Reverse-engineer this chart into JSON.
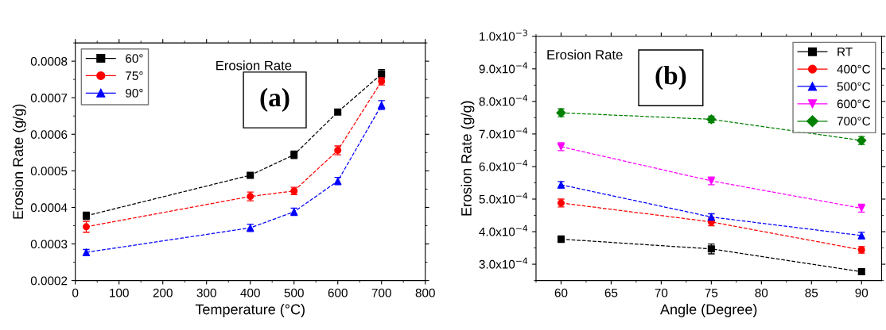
{
  "chart_data": [
    {
      "type": "line",
      "xlabel": "Temperature (°C)",
      "ylabel": "Erosion Rate (g/g)",
      "annotations": [
        "Erosion Rate",
        "(a)"
      ],
      "x": [
        25,
        400,
        500,
        600,
        700
      ],
      "xlim": [
        0,
        800
      ],
      "xticks": [
        0,
        100,
        200,
        300,
        400,
        500,
        600,
        700,
        800
      ],
      "ylim": [
        0.0002,
        0.00085
      ],
      "yticks": [
        {
          "value": 0.0002,
          "label": "0.0002"
        },
        {
          "value": 0.0003,
          "label": "0.0003"
        },
        {
          "value": 0.0004,
          "label": "0.0004"
        },
        {
          "value": 0.0005,
          "label": "0.0005"
        },
        {
          "value": 0.0006,
          "label": "0.0006"
        },
        {
          "value": 0.0007,
          "label": "0.0007"
        },
        {
          "value": 0.0008,
          "label": "0.0008"
        }
      ],
      "grid": false,
      "legend": "top left",
      "line_style": "dashed",
      "series": [
        {
          "name": "60°",
          "color": "#000000",
          "marker": "square",
          "values": [
            0.000377,
            0.000488,
            0.000544,
            0.000661,
            0.000765
          ],
          "errors": [
            1e-05,
            6e-06,
            1e-05,
            6e-06,
            1.2e-05
          ]
        },
        {
          "name": "75°",
          "color": "#ff0000",
          "marker": "circle",
          "values": [
            0.000347,
            0.00043,
            0.000445,
            0.000556,
            0.000745
          ],
          "errors": [
            1.5e-05,
            1.2e-05,
            1e-05,
            1.2e-05,
            1e-05
          ]
        },
        {
          "name": "90°",
          "color": "#0000ff",
          "marker": "triangle",
          "values": [
            0.000277,
            0.000344,
            0.000388,
            0.000472,
            0.00068
          ],
          "errors": [
            8e-06,
            1e-05,
            1e-05,
            1e-05,
            1.2e-05
          ]
        }
      ]
    },
    {
      "type": "line",
      "xlabel": "Angle (Degree)",
      "ylabel": "Erosion Rate (g/g)",
      "annotations": [
        "Erosion Rate",
        "(b)"
      ],
      "x": [
        60,
        75,
        90
      ],
      "xlim": [
        57.5,
        92
      ],
      "xticks": [
        60,
        65,
        70,
        75,
        80,
        85,
        90
      ],
      "ylim": [
        0.00025,
        0.001
      ],
      "yticks": [
        {
          "value": 0.0003,
          "label": "3.0x10$^{−4}$"
        },
        {
          "value": 0.0004,
          "label": "4.0x10$^{−4}$"
        },
        {
          "value": 0.0005,
          "label": "5.0x10$^{−4}$"
        },
        {
          "value": 0.0006,
          "label": "6.0x10$^{−4}$"
        },
        {
          "value": 0.0007,
          "label": "7.0x10$^{−4}$"
        },
        {
          "value": 0.0008,
          "label": "8.0x10$^{−4}$"
        },
        {
          "value": 0.0009,
          "label": "9.0x10$^{−4}$"
        },
        {
          "value": 0.001,
          "label": "1.0x10$^{−3}$"
        }
      ],
      "grid": false,
      "legend": "top right",
      "line_style": "dashed",
      "series": [
        {
          "name": "RT",
          "color": "#000000",
          "marker": "square",
          "values": [
            0.000377,
            0.000347,
            0.000277
          ],
          "errors": [
            1e-05,
            1.5e-05,
            6e-06
          ]
        },
        {
          "name": "400°C",
          "color": "#ff0000",
          "marker": "circle",
          "values": [
            0.000488,
            0.00043,
            0.000344
          ],
          "errors": [
            1.2e-05,
            1.2e-05,
            1e-05
          ]
        },
        {
          "name": "500°C",
          "color": "#0000ff",
          "marker": "triangle",
          "values": [
            0.000544,
            0.000445,
            0.000388
          ],
          "errors": [
            1e-05,
            1e-05,
            1e-05
          ]
        },
        {
          "name": "600°C",
          "color": "#ff00ff",
          "marker": "triangle_down",
          "values": [
            0.000661,
            0.000556,
            0.000472
          ],
          "errors": [
            1.2e-05,
            1.2e-05,
            1.2e-05
          ]
        },
        {
          "name": "700°C",
          "color": "#008000",
          "marker": "diamond",
          "values": [
            0.000765,
            0.000745,
            0.00068
          ],
          "errors": [
            1.2e-05,
            1e-05,
            1.2e-05
          ]
        }
      ]
    }
  ]
}
